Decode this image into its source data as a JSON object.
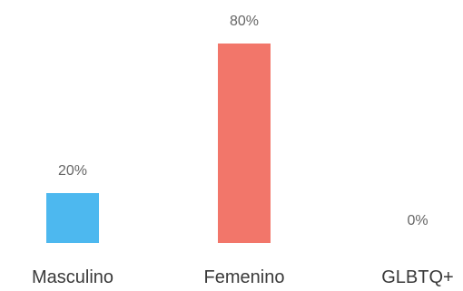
{
  "chart_data": {
    "type": "bar",
    "categories": [
      "Masculino",
      "Femenino",
      "GLBTQ+"
    ],
    "values": [
      20,
      80,
      0
    ],
    "value_labels": [
      "20%",
      "80%",
      "0%"
    ],
    "colors": [
      "#4db8ef",
      "#f2766a",
      "#9e9e9e"
    ],
    "ylim": [
      0,
      80
    ],
    "grid": false,
    "legend": "none",
    "title": "",
    "xlabel": "",
    "ylabel": ""
  }
}
